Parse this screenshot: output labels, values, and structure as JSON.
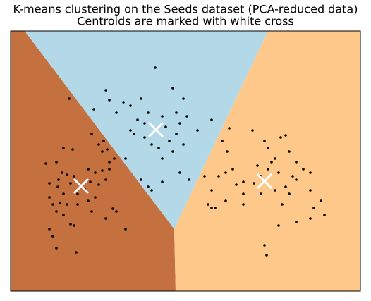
{
  "chart_data": {
    "type": "scatter",
    "title": "K-means clustering on the Seeds dataset (PCA-reduced data)",
    "subtitle": "Centroids are marked with white cross",
    "xlim": [
      15,
      511
    ],
    "ylim": [
      413,
      44
    ],
    "regions": [
      {
        "color": "#c4703f",
        "x": [
          15,
          35,
          247,
          249,
          15
        ],
        "y": [
          44,
          44,
          325,
          413,
          413
        ]
      },
      {
        "color": "#b3d8e8",
        "x": [
          35,
          380,
          247
        ],
        "y": [
          44,
          44,
          325
        ]
      },
      {
        "color": "#fdc88a",
        "x": [
          380,
          511,
          511,
          249,
          247
        ],
        "y": [
          44,
          44,
          413,
          413,
          325
        ]
      }
    ],
    "points": {
      "color": "#000000",
      "x": [
        98,
        133,
        130,
        147,
        140,
        152,
        90,
        103,
        65,
        80,
        88,
        95,
        83,
        70,
        82,
        100,
        105,
        125,
        135,
        145,
        155,
        150,
        128,
        140,
        135,
        125,
        110,
        95,
        85,
        75,
        70,
        80,
        90,
        105,
        100,
        70,
        75,
        80,
        108,
        178,
        165,
        160,
        150,
        130,
        110,
        90,
        120,
        145,
        155,
        162,
        150,
        155,
        175,
        165,
        185,
        200,
        220,
        245,
        260,
        250,
        230,
        210,
        195,
        185,
        190,
        205,
        215,
        225,
        240,
        250,
        255,
        265,
        280,
        245,
        230,
        178,
        200,
        210,
        215,
        230,
        255,
        268,
        290,
        300,
        315,
        235,
        205,
        260,
        325,
        358,
        375,
        380,
        385,
        398,
        405,
        410,
        420,
        430,
        440,
        415,
        395,
        380,
        370,
        360,
        345,
        335,
        322,
        320,
        310,
        300,
        295,
        305,
        320,
        345,
        370,
        390,
        405,
        410,
        420,
        440,
        445,
        455,
        460,
        440,
        420,
        395,
        375,
        378,
        400,
        345,
        300,
        330,
        365,
        390
      ],
      "y": [
        140,
        155,
        190,
        200,
        205,
        212,
        210,
        212,
        232,
        230,
        245,
        248,
        255,
        260,
        265,
        260,
        250,
        240,
        245,
        242,
        240,
        255,
        258,
        262,
        280,
        285,
        290,
        290,
        288,
        290,
        280,
        300,
        305,
        320,
        318,
        325,
        335,
        352,
        358,
        325,
        300,
        296,
        310,
        300,
        275,
        275,
        268,
        215,
        230,
        225,
        128,
        142,
        145,
        160,
        150,
        140,
        96,
        125,
        140,
        160,
        165,
        160,
        170,
        185,
        190,
        195,
        205,
        210,
        200,
        190,
        175,
        165,
        185,
        215,
        225,
        225,
        255,
        265,
        270,
        258,
        245,
        255,
        250,
        170,
        200,
        180,
        175,
        205,
        182,
        185,
        200,
        210,
        230,
        195,
        192,
        215,
        230,
        240,
        245,
        250,
        245,
        240,
        250,
        260,
        258,
        262,
        215,
        245,
        250,
        270,
        290,
        295,
        285,
        290,
        275,
        270,
        265,
        275,
        255,
        270,
        295,
        285,
        305,
        310,
        315,
        320,
        348,
        362,
        290,
        275,
        295,
        240,
        235,
        225
      ]
    },
    "centroids": {
      "color": "#ffffff",
      "x": [
        115,
        221,
        375
      ],
      "y": [
        264,
        184,
        257
      ]
    }
  }
}
